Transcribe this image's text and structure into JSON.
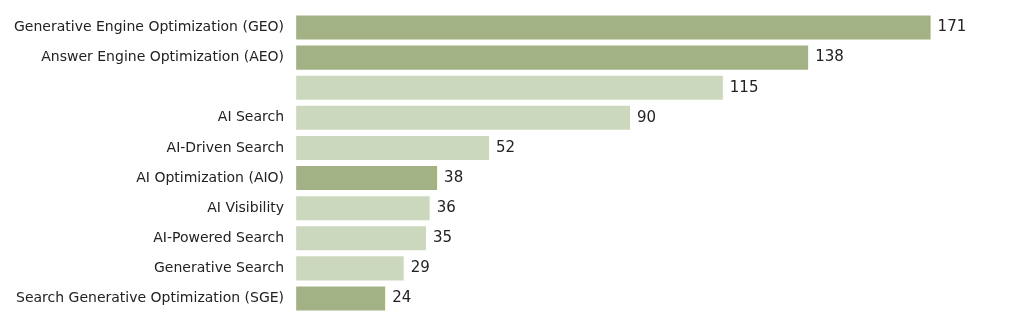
{
  "chart_data": {
    "type": "bar",
    "orientation": "horizontal",
    "categories": [
      "Generative Engine Optimization (GEO)",
      "Answer Engine Optimization (AEO)",
      null,
      "AI Search",
      "AI-Driven Search",
      "AI Optimization (AIO)",
      "AI Visibility",
      "AI-Powered Search",
      "Generative Search",
      "Search Generative Optimization (SGE)"
    ],
    "values": [
      171,
      138,
      115,
      90,
      52,
      38,
      36,
      35,
      29,
      24
    ],
    "colors": [
      "#a3b285",
      "#a3b285",
      "#ccd8bd",
      "#ccd8bd",
      "#ccd8bd",
      "#a3b285",
      "#ccd8bd",
      "#ccd8bd",
      "#ccd8bd",
      "#a3b285"
    ],
    "data_labels": true
  }
}
